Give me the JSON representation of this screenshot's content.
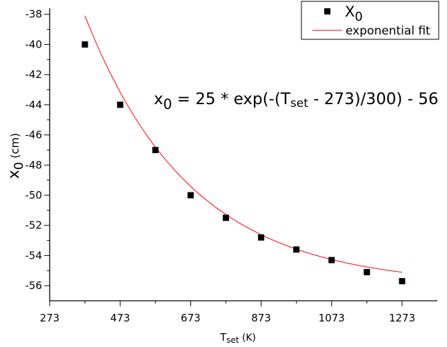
{
  "chart_data": {
    "type": "scatter",
    "title": "",
    "xlabel": {
      "main": "T",
      "sub": "set",
      "rest": " (K)"
    },
    "ylabel": {
      "main": "x",
      "sub": "0",
      "rest": " (cm)"
    },
    "xlim": [
      273,
      1373
    ],
    "ylim": [
      -57,
      -37.6
    ],
    "x_ticks": [
      273,
      473,
      673,
      873,
      1073,
      1273
    ],
    "x_tick_labels": [
      "273",
      "473",
      "673",
      "873",
      "1073",
      "1273"
    ],
    "y_ticks": [
      -38,
      -40,
      -42,
      -44,
      -46,
      -48,
      -50,
      -52,
      -54,
      -56
    ],
    "y_tick_labels": [
      "-38",
      "-40",
      "-42",
      "-44",
      "-46",
      "-48",
      "-50",
      "-52",
      "-54",
      "-56"
    ],
    "grid": false,
    "legend_position": "top-right",
    "series": [
      {
        "name": "X0",
        "name_main": "X",
        "name_sub": "0",
        "kind": "scatter",
        "marker": "square",
        "color": "#000000",
        "x": [
          373,
          473,
          573,
          673,
          773,
          873,
          973,
          1073,
          1173,
          1273
        ],
        "y": [
          -40.0,
          -44.0,
          -47.0,
          -50.0,
          -51.5,
          -52.8,
          -53.6,
          -54.3,
          -55.1,
          -55.7
        ]
      },
      {
        "name": "exponential fit",
        "kind": "line",
        "color": "#ff0000",
        "x_range": [
          373,
          1273
        ],
        "formula": {
          "a": 25,
          "x0": 273,
          "t": 300,
          "c": -56
        }
      }
    ],
    "annotation": {
      "pre": "x",
      "sub": "0",
      "post": " = 25 * exp(-(T",
      "sub2": "set",
      "post2": " - 273)/300) - 56"
    }
  }
}
